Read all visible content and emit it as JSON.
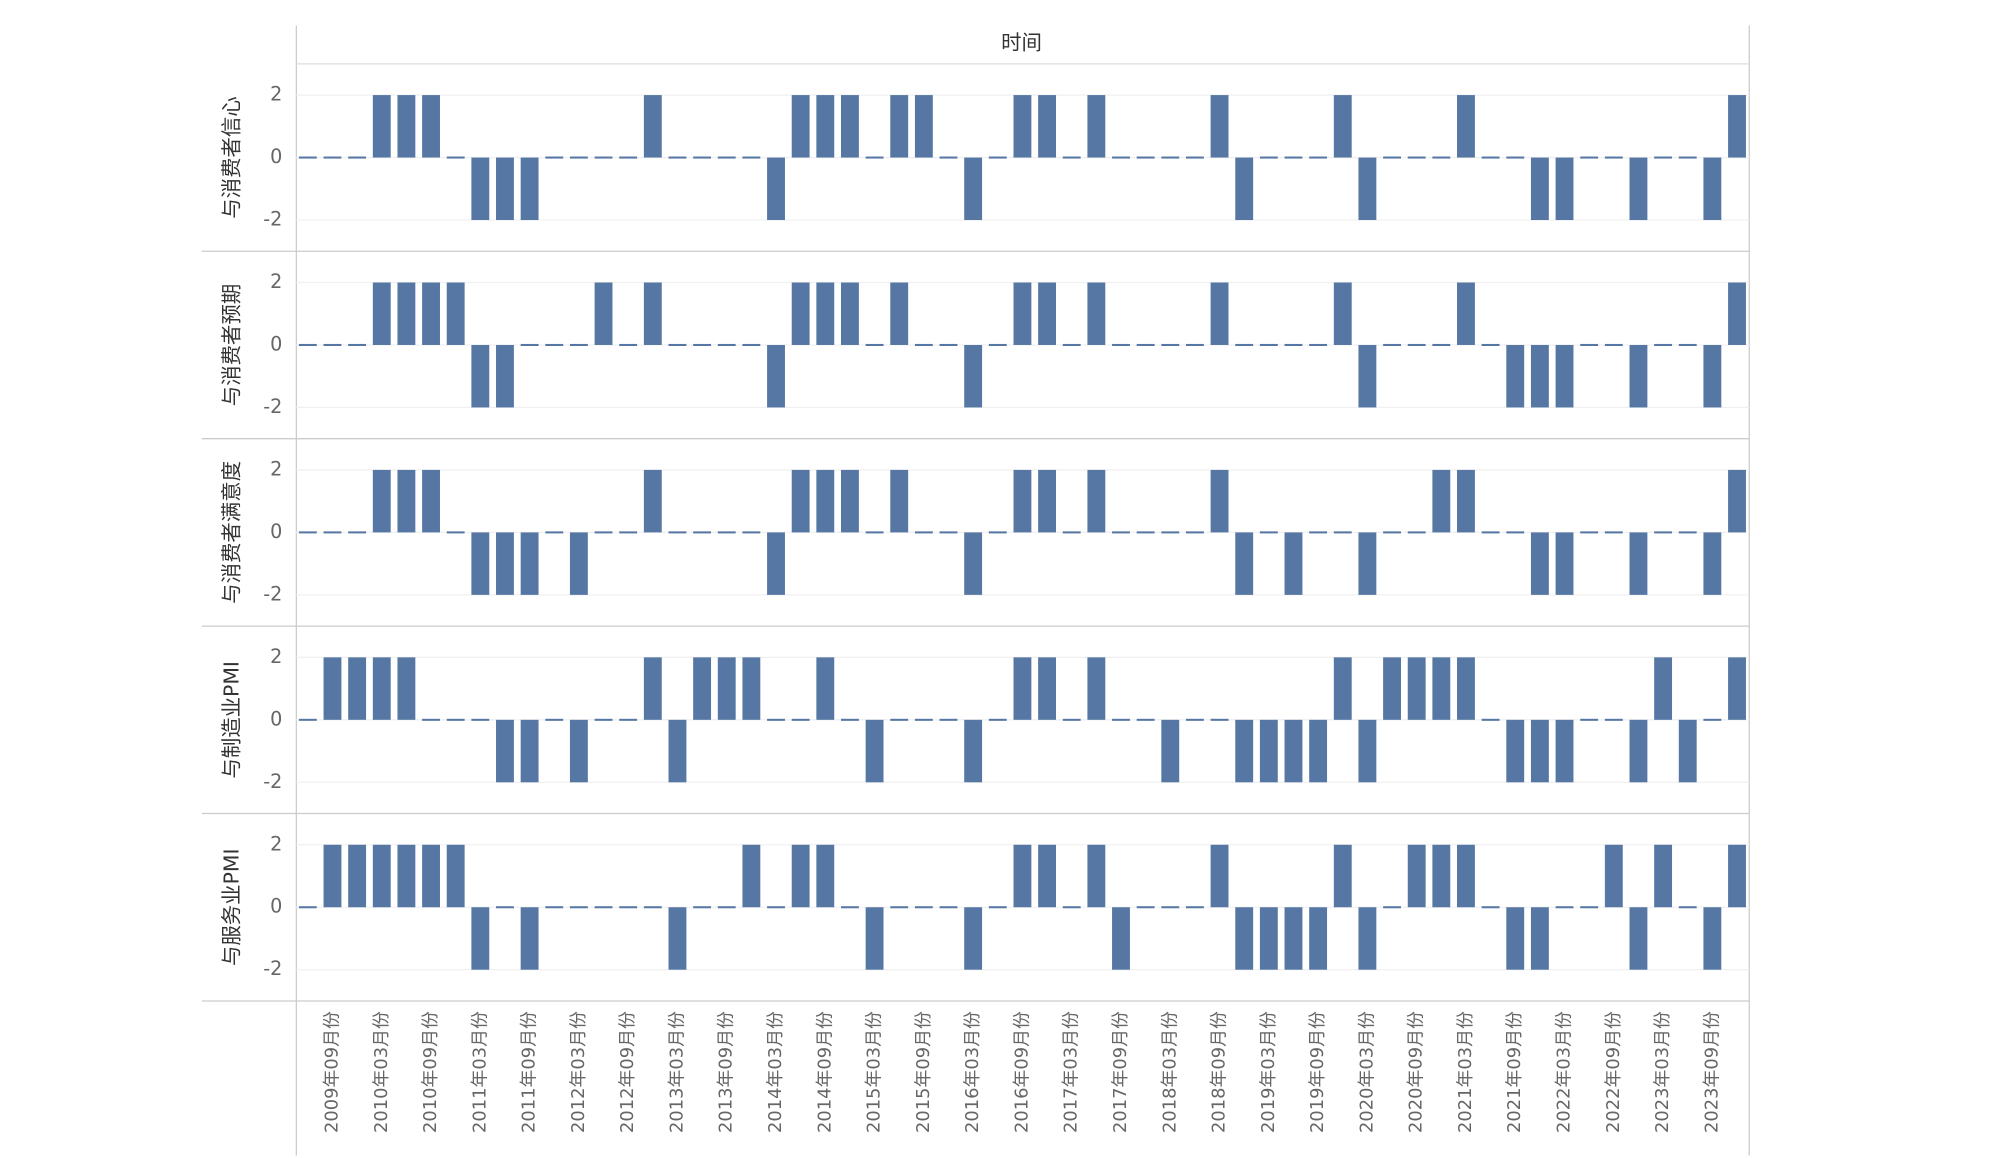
{
  "chart_data": {
    "type": "bar",
    "title": "时间",
    "categories": [
      null,
      "2009年09月份",
      null,
      "2010年03月份",
      null,
      "2010年09月份",
      null,
      "2011年03月份",
      null,
      "2011年09月份",
      null,
      "2012年03月份",
      null,
      "2012年09月份",
      null,
      "2013年03月份",
      null,
      "2013年09月份",
      null,
      "2014年03月份",
      null,
      "2014年09月份",
      null,
      "2015年03月份",
      null,
      "2015年09月份",
      null,
      "2016年03月份",
      null,
      "2016年09月份",
      null,
      "2017年03月份",
      null,
      "2017年09月份",
      null,
      "2018年03月份",
      null,
      "2018年09月份",
      null,
      "2019年03月份",
      null,
      "2019年09月份",
      null,
      "2020年03月份",
      null,
      "2020年09月份",
      null,
      "2021年03月份",
      null,
      "2021年09月份",
      null,
      "2022年03月份",
      null,
      "2022年09月份",
      null,
      "2023年03月份",
      null,
      "2023年09月份",
      null
    ],
    "ylim": [
      -3,
      3
    ],
    "yticks": [
      -2,
      0,
      2
    ],
    "grid": true,
    "series": [
      {
        "name": "与消费者信心",
        "color": "#5677a4",
        "values": [
          0,
          0,
          0,
          2,
          2,
          2,
          0,
          -2,
          -2,
          -2,
          0,
          0,
          0,
          0,
          2,
          0,
          0,
          0,
          0,
          -2,
          2,
          2,
          2,
          0,
          2,
          2,
          0,
          -2,
          0,
          2,
          2,
          0,
          2,
          0,
          0,
          0,
          0,
          2,
          -2,
          0,
          0,
          0,
          2,
          -2,
          0,
          0,
          0,
          2,
          0,
          0,
          -2,
          -2,
          0,
          0,
          -2,
          0,
          0,
          -2,
          2
        ]
      },
      {
        "name": "与消费者预期",
        "color": "#5677a4",
        "values": [
          0,
          0,
          0,
          2,
          2,
          2,
          2,
          -2,
          -2,
          0,
          0,
          0,
          2,
          0,
          2,
          0,
          0,
          0,
          0,
          -2,
          2,
          2,
          2,
          0,
          2,
          0,
          0,
          -2,
          0,
          2,
          2,
          0,
          2,
          0,
          0,
          0,
          0,
          2,
          0,
          0,
          0,
          0,
          2,
          -2,
          0,
          0,
          0,
          2,
          0,
          -2,
          -2,
          -2,
          0,
          0,
          -2,
          0,
          0,
          -2,
          2
        ]
      },
      {
        "name": "与消费者满意度",
        "color": "#5677a4",
        "values": [
          0,
          0,
          0,
          2,
          2,
          2,
          0,
          -2,
          -2,
          -2,
          0,
          -2,
          0,
          0,
          2,
          0,
          0,
          0,
          0,
          -2,
          2,
          2,
          2,
          0,
          2,
          0,
          0,
          -2,
          0,
          2,
          2,
          0,
          2,
          0,
          0,
          0,
          0,
          2,
          -2,
          0,
          -2,
          0,
          0,
          -2,
          0,
          0,
          2,
          2,
          0,
          0,
          -2,
          -2,
          0,
          0,
          -2,
          0,
          0,
          -2,
          2
        ]
      },
      {
        "name": "与制造业PMI",
        "color": "#5677a4",
        "values": [
          0,
          2,
          2,
          2,
          2,
          0,
          0,
          0,
          -2,
          -2,
          0,
          -2,
          0,
          0,
          2,
          -2,
          2,
          2,
          2,
          0,
          0,
          2,
          0,
          -2,
          0,
          0,
          0,
          -2,
          0,
          2,
          2,
          0,
          2,
          0,
          0,
          -2,
          0,
          0,
          -2,
          -2,
          -2,
          -2,
          2,
          -2,
          2,
          2,
          2,
          2,
          0,
          -2,
          -2,
          -2,
          0,
          0,
          -2,
          2,
          -2,
          0,
          2
        ]
      },
      {
        "name": "与服务业PMI",
        "color": "#5677a4",
        "values": [
          0,
          2,
          2,
          2,
          2,
          2,
          2,
          -2,
          0,
          -2,
          0,
          0,
          0,
          0,
          0,
          -2,
          0,
          0,
          2,
          0,
          2,
          2,
          0,
          -2,
          0,
          0,
          0,
          -2,
          0,
          2,
          2,
          0,
          2,
          -2,
          0,
          0,
          0,
          2,
          -2,
          -2,
          -2,
          -2,
          2,
          -2,
          0,
          2,
          2,
          2,
          0,
          -2,
          -2,
          0,
          0,
          2,
          -2,
          2,
          0,
          -2,
          2
        ]
      }
    ]
  }
}
